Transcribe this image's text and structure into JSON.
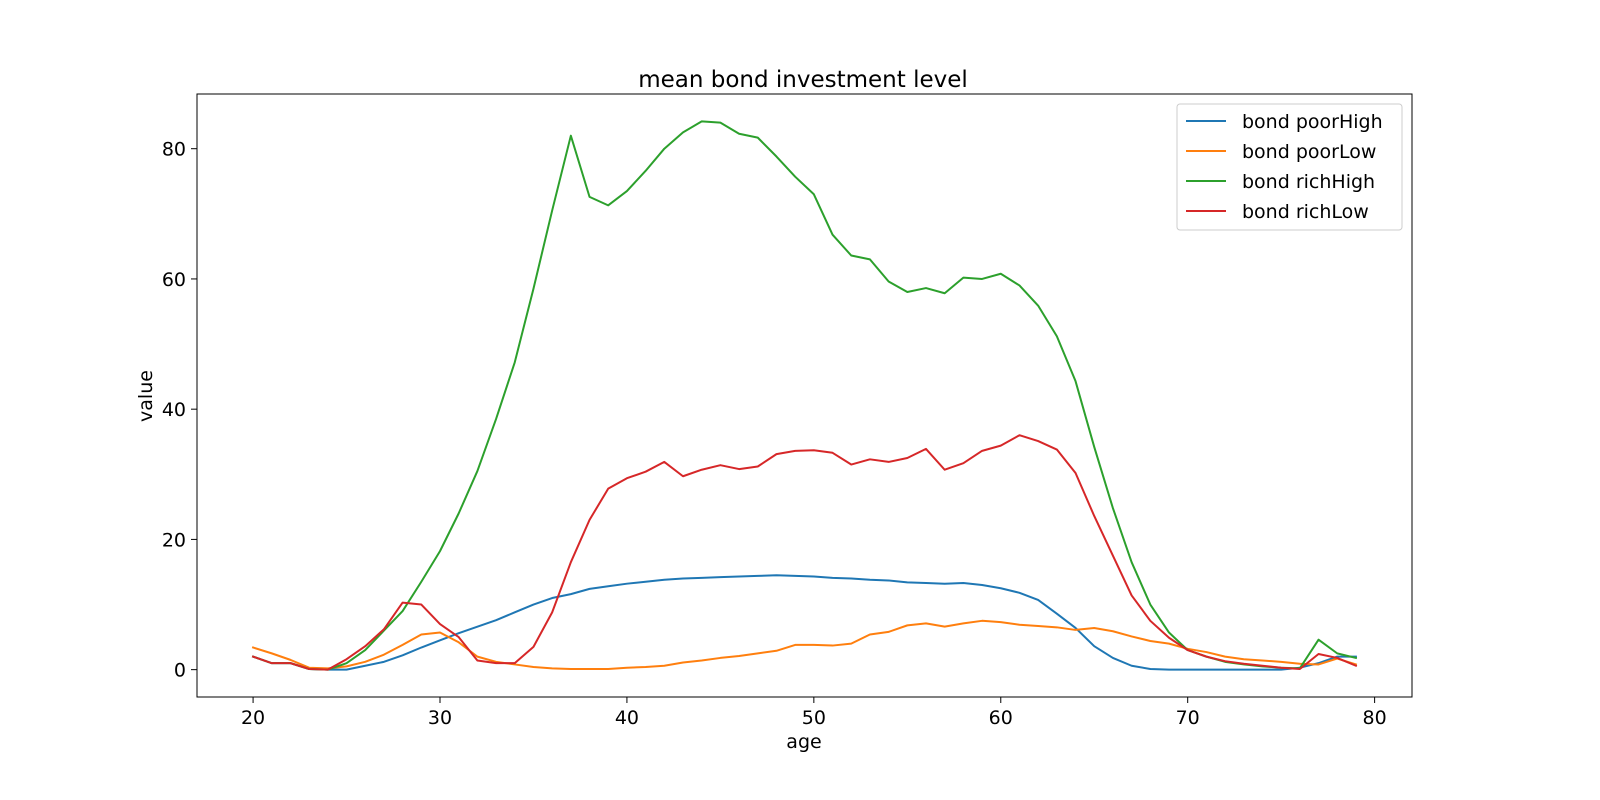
{
  "chart_data": {
    "type": "line",
    "title": "mean bond investment level",
    "xlabel": "age",
    "ylabel": "value",
    "xlim": [
      17,
      82
    ],
    "ylim": [
      -4.2,
      88.4
    ],
    "xticks": [
      20,
      30,
      40,
      50,
      60,
      70,
      80
    ],
    "yticks": [
      0,
      20,
      40,
      60,
      80
    ],
    "grid": false,
    "legend_position": "top-right",
    "x": [
      20,
      21,
      22,
      23,
      24,
      25,
      26,
      27,
      28,
      29,
      30,
      31,
      32,
      33,
      34,
      35,
      36,
      37,
      38,
      39,
      40,
      41,
      42,
      43,
      44,
      45,
      46,
      47,
      48,
      49,
      50,
      51,
      52,
      53,
      54,
      55,
      56,
      57,
      58,
      59,
      60,
      61,
      62,
      63,
      64,
      65,
      66,
      67,
      68,
      69,
      70,
      71,
      72,
      73,
      74,
      75,
      76,
      77,
      78,
      79
    ],
    "series": [
      {
        "name": "bond poorHigh",
        "color": "#1f77b4",
        "values": [
          2.0,
          1.0,
          1.0,
          0.1,
          0.0,
          0.0,
          0.6,
          1.2,
          2.2,
          3.4,
          4.5,
          5.6,
          6.6,
          7.6,
          8.8,
          10.0,
          11.0,
          11.6,
          12.4,
          12.8,
          13.2,
          13.5,
          13.8,
          14.0,
          14.1,
          14.2,
          14.3,
          14.4,
          14.5,
          14.4,
          14.3,
          14.1,
          14.0,
          13.8,
          13.7,
          13.4,
          13.3,
          13.2,
          13.3,
          13.0,
          12.5,
          11.8,
          10.7,
          8.6,
          6.4,
          3.6,
          1.8,
          0.6,
          0.1,
          0.0,
          0.0,
          0.0,
          0.0,
          0.0,
          0.0,
          0.0,
          0.3,
          1.0,
          2.0,
          2.0
        ]
      },
      {
        "name": "bond poorLow",
        "color": "#ff7f0e",
        "values": [
          3.4,
          2.5,
          1.5,
          0.3,
          0.2,
          0.5,
          1.2,
          2.3,
          3.8,
          5.4,
          5.7,
          4.2,
          2.0,
          1.2,
          0.8,
          0.4,
          0.2,
          0.1,
          0.1,
          0.1,
          0.3,
          0.4,
          0.6,
          1.1,
          1.4,
          1.8,
          2.1,
          2.5,
          2.9,
          3.8,
          3.8,
          3.7,
          4.0,
          5.4,
          5.8,
          6.8,
          7.1,
          6.6,
          7.1,
          7.5,
          7.3,
          6.9,
          6.7,
          6.5,
          6.1,
          6.4,
          5.9,
          5.1,
          4.4,
          4.0,
          3.2,
          2.7,
          2.0,
          1.6,
          1.4,
          1.2,
          0.9,
          0.8,
          1.7,
          0.8
        ]
      },
      {
        "name": "bond richHigh",
        "color": "#2ca02c",
        "values": [
          2.0,
          1.0,
          1.0,
          0.1,
          0.0,
          1.0,
          3.0,
          6.0,
          9.0,
          13.5,
          18.2,
          24.0,
          30.5,
          38.5,
          47.2,
          58.5,
          70.5,
          82.0,
          72.6,
          71.3,
          73.5,
          76.6,
          80.0,
          82.5,
          84.2,
          84.0,
          82.3,
          81.7,
          78.8,
          75.7,
          73.0,
          66.8,
          63.6,
          63.0,
          59.6,
          58.0,
          58.6,
          57.8,
          60.2,
          60.0,
          60.8,
          59.0,
          55.9,
          51.2,
          44.3,
          34.2,
          24.8,
          16.5,
          10.0,
          5.7,
          3.0,
          2.0,
          1.2,
          0.8,
          0.5,
          0.3,
          0.2,
          4.6,
          2.5,
          1.8
        ]
      },
      {
        "name": "bond richLow",
        "color": "#d62728",
        "values": [
          2.0,
          1.0,
          1.0,
          0.1,
          0.0,
          1.6,
          3.6,
          6.2,
          10.3,
          10.0,
          7.0,
          5.0,
          1.4,
          1.0,
          1.0,
          3.5,
          8.8,
          16.5,
          23.0,
          27.8,
          29.4,
          30.4,
          31.9,
          29.7,
          30.7,
          31.4,
          30.8,
          31.2,
          33.1,
          33.6,
          33.7,
          33.3,
          31.5,
          32.3,
          31.9,
          32.5,
          33.9,
          30.7,
          31.7,
          33.6,
          34.4,
          36.0,
          35.1,
          33.8,
          30.2,
          23.6,
          17.5,
          11.4,
          7.5,
          4.9,
          3.0,
          2.0,
          1.3,
          0.9,
          0.6,
          0.3,
          0.1,
          2.4,
          1.8,
          0.6
        ]
      }
    ]
  }
}
